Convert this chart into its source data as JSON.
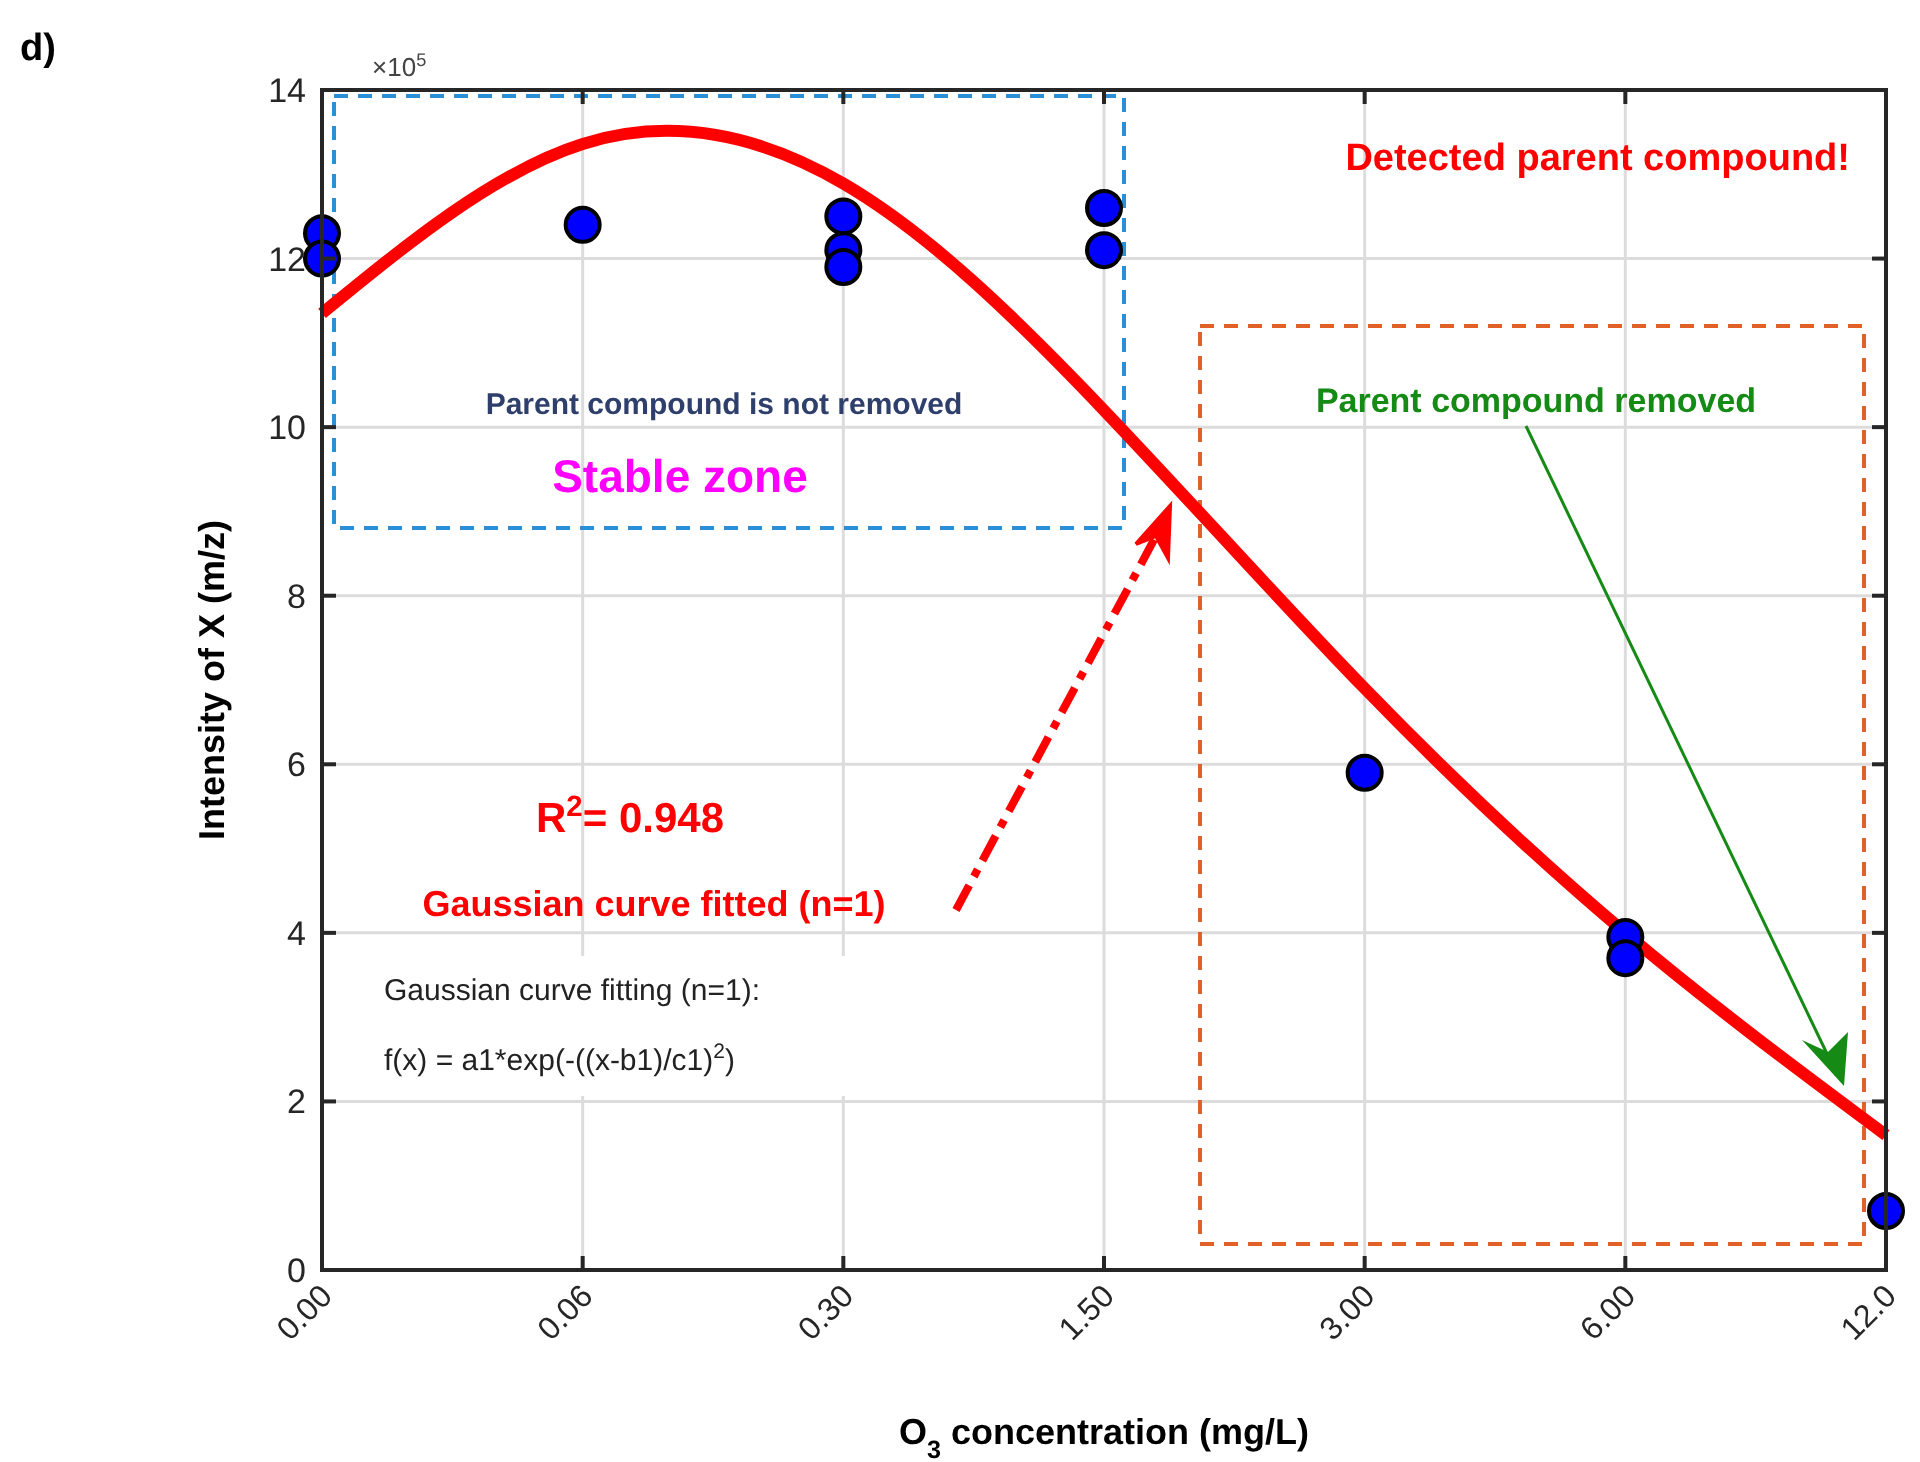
{
  "chart_data": {
    "type": "scatter",
    "xlabel": "O$_{3}$ concentration (mg/L)",
    "ylabel": "Intensity of X (m/z)",
    "categories": [
      "0.00",
      "0.06",
      "0.30",
      "1.50",
      "3.00",
      "6.00",
      "12.0"
    ],
    "ylim": [
      0,
      14
    ],
    "yticks": [
      0,
      2,
      4,
      6,
      8,
      10,
      12,
      14
    ],
    "grid": true,
    "marker": "circle",
    "series": [
      {
        "type": "line",
        "marker": "none",
        "color": "#ff0000",
        "values": [
          11.35,
          13.36,
          12.89,
          10.2,
          6.9,
          4.0,
          1.6
        ]
      },
      {
        "color": "#0000ff",
        "x": [
          "0.00",
          "0.00",
          "0.06",
          "0.30",
          "0.30",
          "0.30",
          "1.50",
          "1.50",
          "3.00",
          "6.00",
          "6.00",
          "12.0"
        ],
        "values": [
          12.3,
          12.0,
          12.4,
          12.5,
          12.1,
          11.9,
          12.6,
          12.1,
          5.9,
          3.95,
          3.7,
          0.7
        ]
      }
    ],
    "annotations": [
      "d)",
      "×10$^{5}$",
      "Detected parent compound!",
      "Parent compound is not removed",
      "Stable zone",
      "Parent compound removed",
      "R$^{2}$= 0.948",
      "Gaussian curve fitted (n=1)",
      "Gaussian curve fitting (n=1):",
      "f(x) =  a1*exp(-((x-b1)/c1)$^{2}$)"
    ]
  }
}
